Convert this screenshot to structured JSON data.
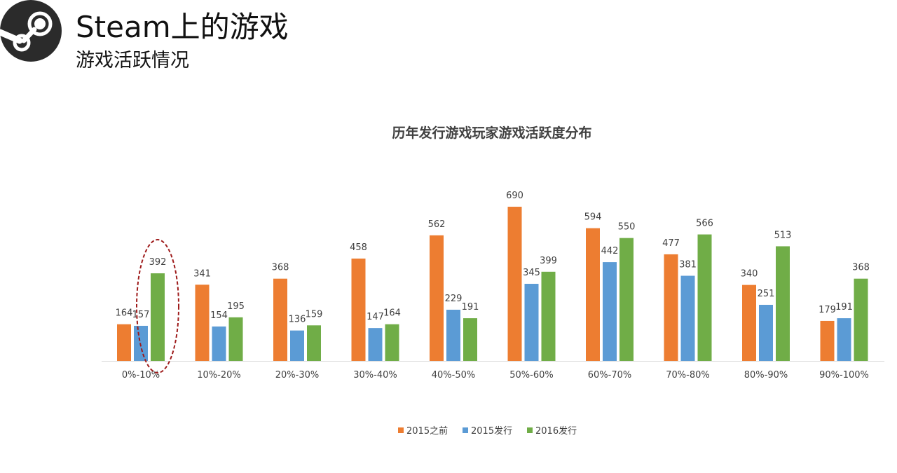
{
  "header": {
    "logo_icon": "steam-logo-icon",
    "title": "Steam上的游戏",
    "subtitle": "游戏活跃情况"
  },
  "colors": {
    "series_2015_before": "#ED7D31",
    "series_2015": "#5B9BD5",
    "series_2016": "#70AD47",
    "highlight_ellipse": "#9E1B1B",
    "axis": "#D9D9D9"
  },
  "chart_data": {
    "type": "bar",
    "title": "历年发行游戏玩家游戏活跃度分布",
    "categories": [
      "0%-10%",
      "10%-20%",
      "20%-30%",
      "30%-40%",
      "40%-50%",
      "50%-60%",
      "60%-70%",
      "70%-80%",
      "80%-90%",
      "90%-100%"
    ],
    "series": [
      {
        "name": "2015之前",
        "values": [
          164,
          341,
          368,
          458,
          562,
          690,
          594,
          477,
          340,
          179
        ]
      },
      {
        "name": "2015发行",
        "values": [
          157,
          154,
          136,
          147,
          229,
          345,
          442,
          381,
          251,
          191
        ]
      },
      {
        "name": "2016发行",
        "values": [
          392,
          195,
          159,
          164,
          191,
          399,
          550,
          566,
          513,
          368
        ]
      }
    ],
    "ylim": [
      0,
      700
    ],
    "grid": false,
    "legend": "bottom",
    "annotation": "dashed ellipse highlighting 2016发行 bar in 0%-10%"
  }
}
